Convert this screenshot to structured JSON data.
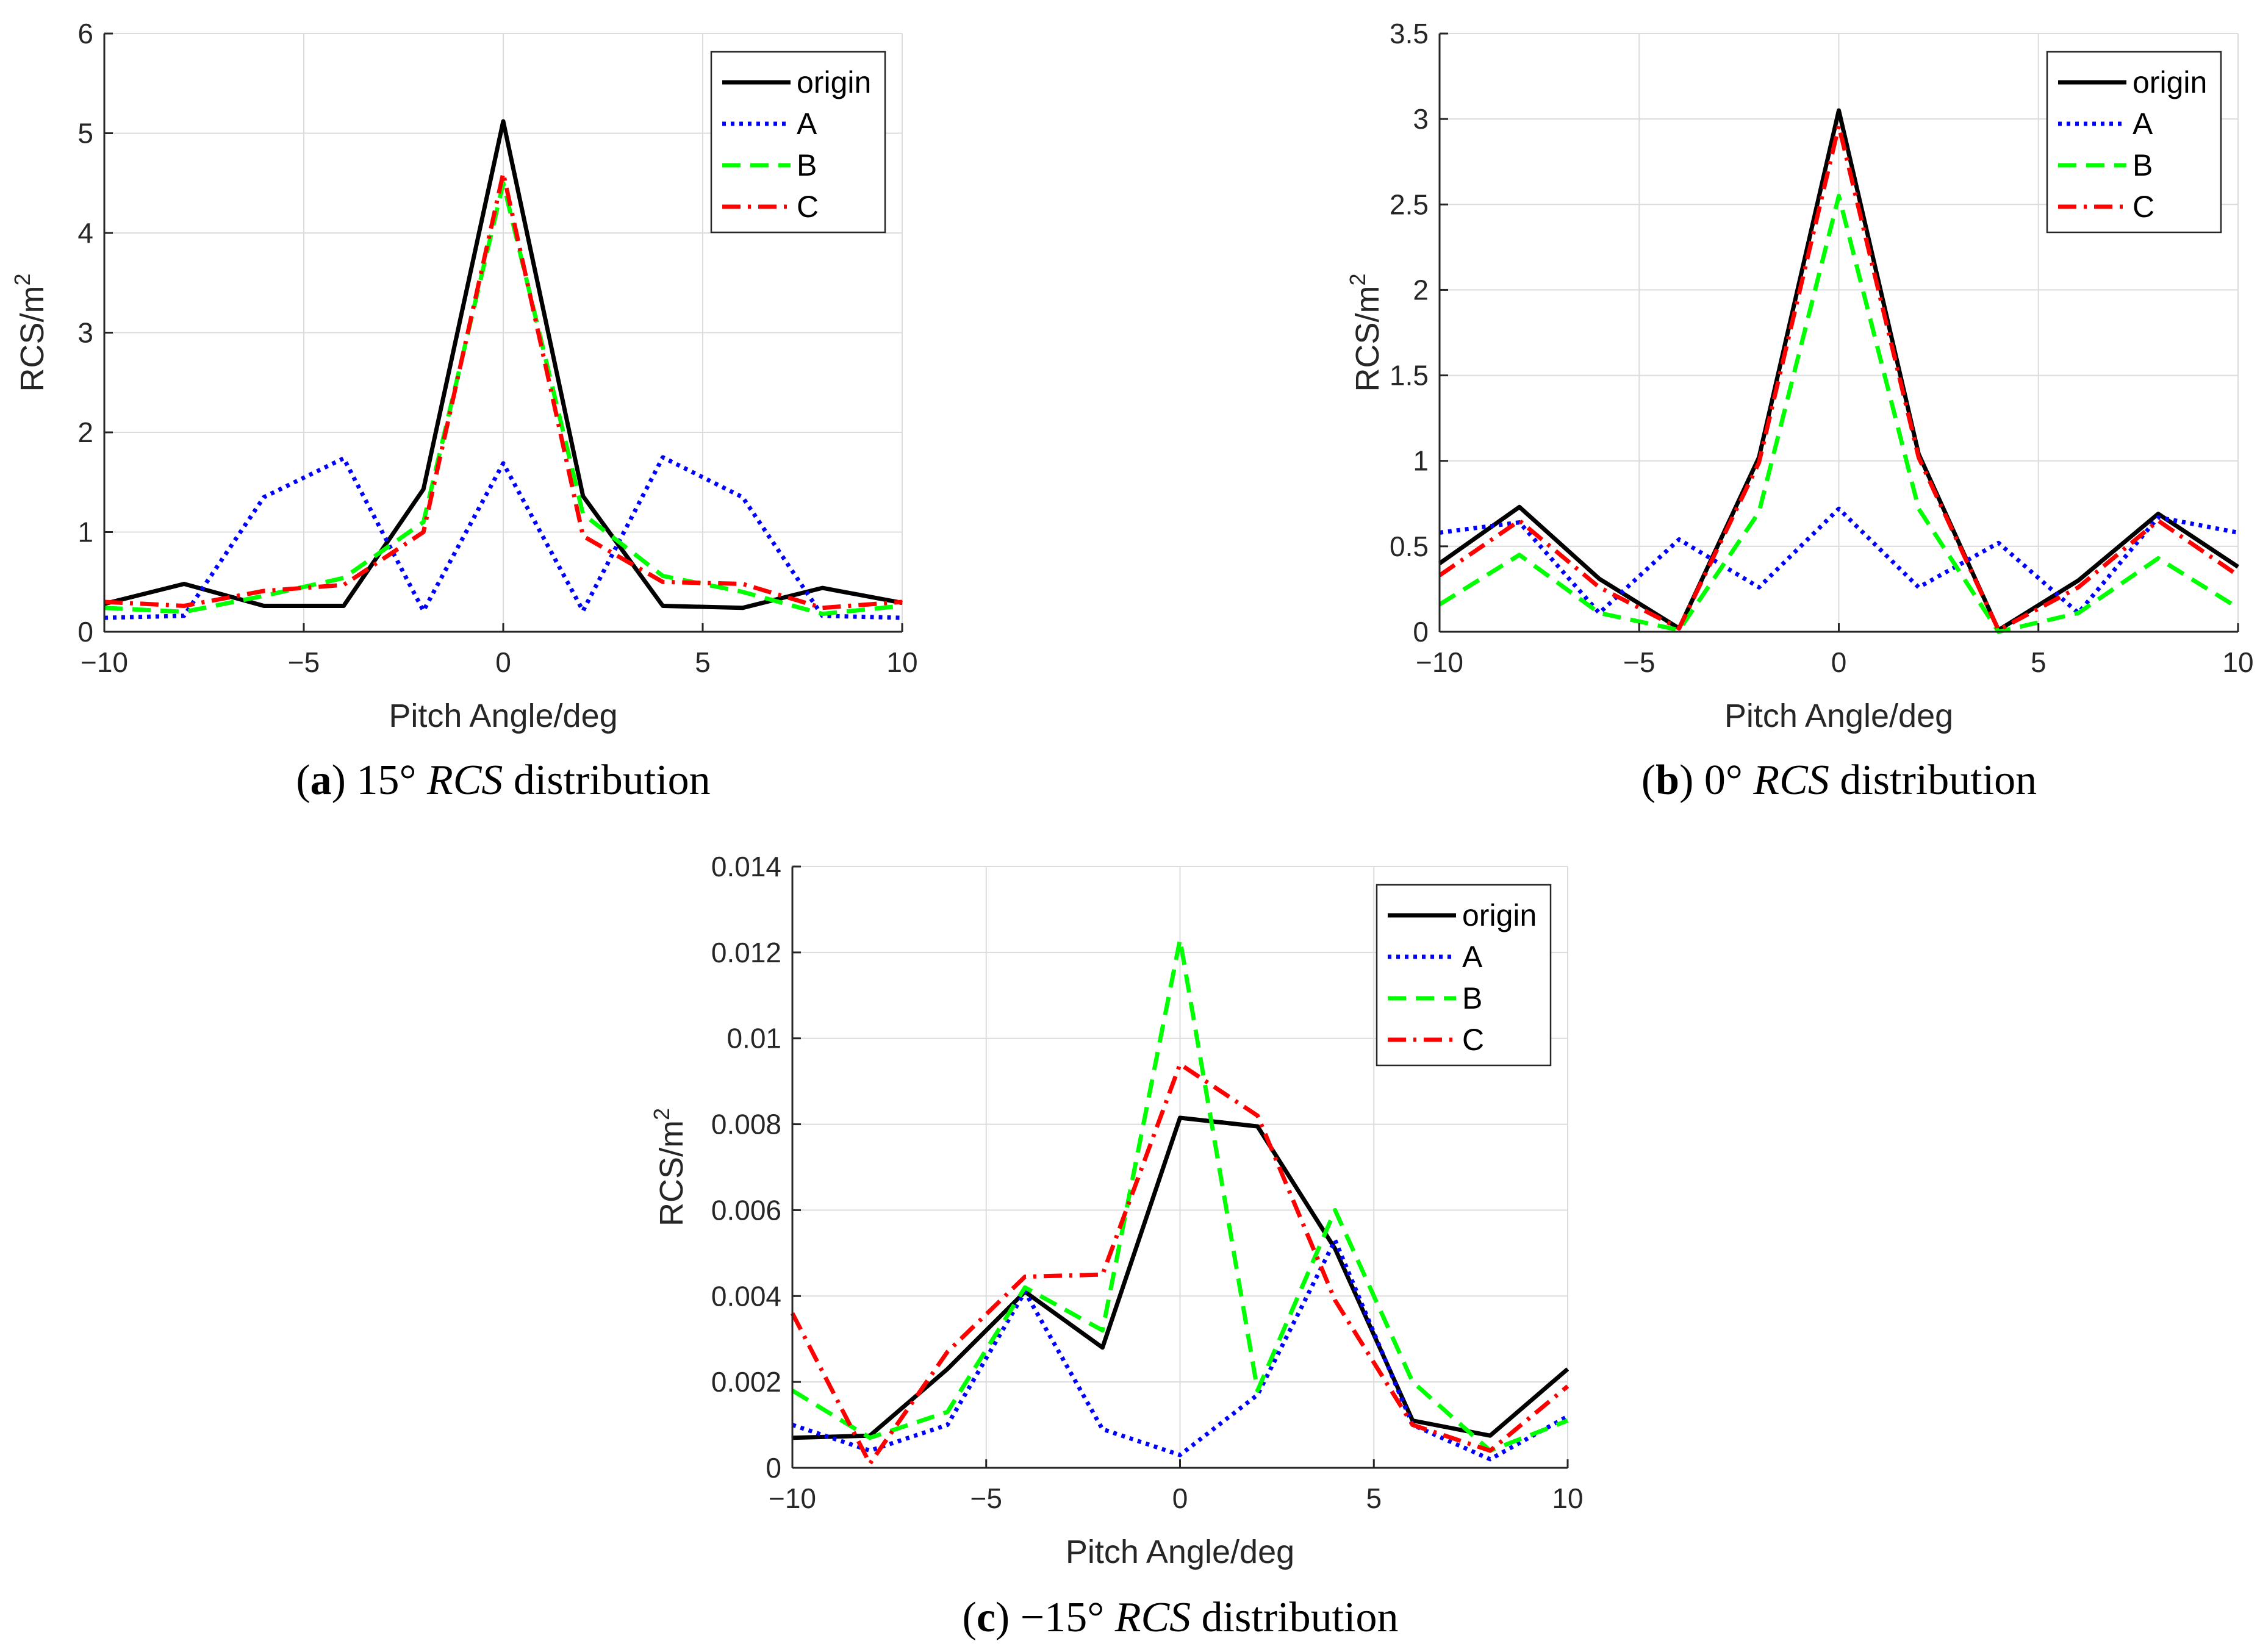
{
  "chart_data": [
    {
      "type": "line",
      "panel": "a",
      "caption": {
        "label": "a",
        "prefix": "15° ",
        "italic": "RCS",
        "suffix": " distribution"
      },
      "xlabel": "Pitch Angle/deg",
      "ylabel": "RCS/m",
      "ylabel_sup": "2",
      "xlim": [
        -10,
        10
      ],
      "ylim": [
        0,
        6
      ],
      "xticks": [
        -10,
        -5,
        0,
        5,
        10
      ],
      "xtick_labels": [
        "−10",
        "−5",
        "0",
        "5",
        "10"
      ],
      "yticks": [
        0,
        1,
        2,
        3,
        4,
        5,
        6
      ],
      "ytick_labels": [
        "0",
        "1",
        "2",
        "3",
        "4",
        "5",
        "6"
      ],
      "grid": true,
      "legend_position": "top-right",
      "x": [
        -10,
        -8,
        -6,
        -4,
        -2,
        0,
        2,
        4,
        6,
        8,
        10
      ],
      "series": [
        {
          "name": "origin",
          "color": "#000000",
          "style": "solid",
          "values": [
            0.28,
            0.48,
            0.26,
            0.26,
            1.43,
            5.12,
            1.36,
            0.26,
            0.24,
            0.44,
            0.29
          ]
        },
        {
          "name": "A",
          "color": "#0000ff",
          "style": "dotted",
          "values": [
            0.14,
            0.16,
            1.35,
            1.74,
            0.21,
            1.69,
            0.21,
            1.75,
            1.35,
            0.16,
            0.14
          ]
        },
        {
          "name": "B",
          "color": "#00ff00",
          "style": "dashed",
          "values": [
            0.24,
            0.2,
            0.36,
            0.54,
            1.1,
            4.5,
            1.18,
            0.56,
            0.4,
            0.18,
            0.26
          ]
        },
        {
          "name": "C",
          "color": "#ff0000",
          "style": "dashdot",
          "values": [
            0.3,
            0.26,
            0.41,
            0.47,
            1.0,
            4.6,
            0.96,
            0.5,
            0.48,
            0.24,
            0.3
          ]
        }
      ]
    },
    {
      "type": "line",
      "panel": "b",
      "caption": {
        "label": "b",
        "prefix": "0° ",
        "italic": "RCS",
        "suffix": " distribution"
      },
      "xlabel": "Pitch Angle/deg",
      "ylabel": "RCS/m",
      "ylabel_sup": "2",
      "xlim": [
        -10,
        10
      ],
      "ylim": [
        0,
        3.5
      ],
      "xticks": [
        -10,
        -5,
        0,
        5,
        10
      ],
      "xtick_labels": [
        "−10",
        "−5",
        "0",
        "5",
        "10"
      ],
      "yticks": [
        0,
        0.5,
        1,
        1.5,
        2,
        2.5,
        3,
        3.5
      ],
      "ytick_labels": [
        "0",
        "0.5",
        "1",
        "1.5",
        "2",
        "2.5",
        "3",
        "3.5"
      ],
      "grid": true,
      "legend_position": "top-right",
      "x": [
        -10,
        -8,
        -6,
        -4,
        -2,
        0,
        2,
        4,
        6,
        8,
        10
      ],
      "series": [
        {
          "name": "origin",
          "color": "#000000",
          "style": "solid",
          "values": [
            0.4,
            0.73,
            0.31,
            0.02,
            1.02,
            3.05,
            1.04,
            0.01,
            0.3,
            0.69,
            0.38
          ]
        },
        {
          "name": "A",
          "color": "#0000ff",
          "style": "dotted",
          "values": [
            0.58,
            0.64,
            0.11,
            0.54,
            0.26,
            0.72,
            0.26,
            0.52,
            0.11,
            0.67,
            0.58
          ]
        },
        {
          "name": "B",
          "color": "#00ff00",
          "style": "dashed",
          "values": [
            0.16,
            0.45,
            0.11,
            0.01,
            0.7,
            2.55,
            0.72,
            0.0,
            0.11,
            0.43,
            0.14
          ]
        },
        {
          "name": "C",
          "color": "#ff0000",
          "style": "dashdot",
          "values": [
            0.33,
            0.65,
            0.26,
            0.02,
            0.99,
            2.96,
            1.02,
            0.01,
            0.26,
            0.65,
            0.33
          ]
        }
      ]
    },
    {
      "type": "line",
      "panel": "c",
      "caption": {
        "label": "c",
        "prefix": "−15° ",
        "italic": "RCS",
        "suffix": " distribution"
      },
      "xlabel": "Pitch Angle/deg",
      "ylabel": "RCS/m",
      "ylabel_sup": "2",
      "xlim": [
        -10,
        10
      ],
      "ylim": [
        0,
        0.014
      ],
      "xticks": [
        -10,
        -5,
        0,
        5,
        10
      ],
      "xtick_labels": [
        "−10",
        "−5",
        "0",
        "5",
        "10"
      ],
      "yticks": [
        0,
        0.002,
        0.004,
        0.006,
        0.008,
        0.01,
        0.012,
        0.014
      ],
      "ytick_labels": [
        "0",
        "0.002",
        "0.004",
        "0.006",
        "0.008",
        "0.01",
        "0.012",
        "0.014"
      ],
      "grid": true,
      "legend_position": "top-right",
      "x": [
        -10,
        -8,
        -6,
        -4,
        -2,
        0,
        2,
        4,
        6,
        8,
        10
      ],
      "series": [
        {
          "name": "origin",
          "color": "#000000",
          "style": "solid",
          "values": [
            0.0007,
            0.00075,
            0.0023,
            0.0041,
            0.0028,
            0.00815,
            0.00795,
            0.0051,
            0.0011,
            0.00075,
            0.0023
          ]
        },
        {
          "name": "A",
          "color": "#0000ff",
          "style": "dotted",
          "values": [
            0.001,
            0.0004,
            0.001,
            0.0041,
            0.0009,
            0.0003,
            0.0017,
            0.0053,
            0.001,
            0.0002,
            0.0012
          ]
        },
        {
          "name": "B",
          "color": "#00ff00",
          "style": "dashed",
          "values": [
            0.0018,
            0.0007,
            0.0013,
            0.0042,
            0.0032,
            0.0123,
            0.0018,
            0.006,
            0.002,
            0.0004,
            0.0011
          ]
        },
        {
          "name": "C",
          "color": "#ff0000",
          "style": "dashdot",
          "values": [
            0.0036,
            0.0001,
            0.0027,
            0.00445,
            0.0045,
            0.0094,
            0.0082,
            0.0039,
            0.001,
            0.0004,
            0.0019
          ]
        }
      ]
    }
  ]
}
